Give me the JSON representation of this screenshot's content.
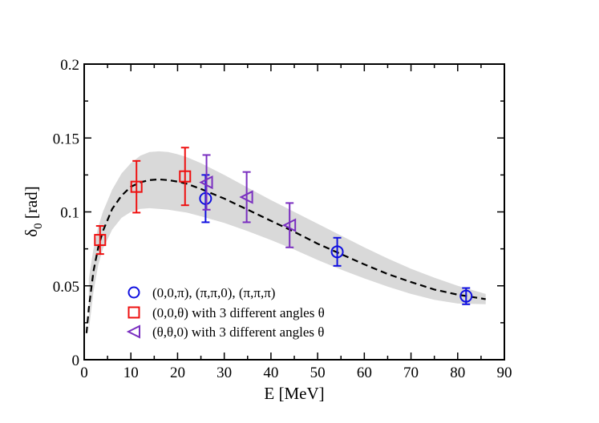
{
  "chart_data": {
    "type": "scatter",
    "title": "",
    "xlabel": "E [MeV]",
    "ylabel_main": "δ",
    "ylabel_sub": "0",
    "ylabel_unit": " [rad]",
    "xlim": [
      0,
      90
    ],
    "ylim": [
      0,
      0.2
    ],
    "x_ticks": [
      0,
      10,
      20,
      30,
      40,
      50,
      60,
      70,
      80,
      90
    ],
    "x_tick_labels": [
      "0",
      "10",
      "20",
      "30",
      "40",
      "50",
      "60",
      "70",
      "80",
      "90"
    ],
    "y_ticks": [
      0,
      0.05,
      0.1,
      0.15,
      0.2
    ],
    "y_tick_labels": [
      "0",
      "0.05",
      "0.1",
      "0.15",
      "0.2"
    ],
    "grid": false,
    "legend_position": "bottom-center",
    "colors": {
      "blue": "#1010e0",
      "red": "#ee1010",
      "purple": "#7a2fc0",
      "band": "#d9d9d9",
      "fit": "#000000"
    },
    "fit_curve": {
      "x": [
        0.5,
        1,
        2,
        3,
        4,
        6,
        8,
        10,
        12,
        14,
        16,
        18,
        20,
        22,
        25,
        30,
        35,
        40,
        45,
        50,
        55,
        60,
        65,
        70,
        75,
        80,
        86
      ],
      "y": [
        0.018,
        0.035,
        0.06,
        0.076,
        0.087,
        0.102,
        0.111,
        0.117,
        0.12,
        0.1215,
        0.122,
        0.1215,
        0.1205,
        0.119,
        0.1155,
        0.109,
        0.1015,
        0.094,
        0.0865,
        0.0785,
        0.0715,
        0.0645,
        0.058,
        0.0525,
        0.0475,
        0.044,
        0.041
      ]
    },
    "band": {
      "x": [
        1,
        2,
        3,
        4,
        6,
        8,
        10,
        12,
        14,
        16,
        18,
        20,
        22,
        25,
        30,
        35,
        40,
        45,
        50,
        55,
        60,
        65,
        70,
        75,
        80,
        86
      ],
      "upper": [
        0.055,
        0.075,
        0.09,
        0.1,
        0.115,
        0.126,
        0.133,
        0.138,
        0.1405,
        0.141,
        0.1405,
        0.139,
        0.137,
        0.133,
        0.125,
        0.1165,
        0.108,
        0.1,
        0.092,
        0.084,
        0.076,
        0.0685,
        0.0615,
        0.0555,
        0.05,
        0.0445
      ],
      "lower": [
        0.02,
        0.046,
        0.064,
        0.075,
        0.088,
        0.096,
        0.1,
        0.102,
        0.1025,
        0.102,
        0.1015,
        0.1005,
        0.0995,
        0.097,
        0.0925,
        0.087,
        0.081,
        0.0745,
        0.0675,
        0.061,
        0.055,
        0.0495,
        0.0445,
        0.0405,
        0.038,
        0.0375
      ]
    },
    "series": [
      {
        "name": "(0,0,π), (π,π,0), (π,π,π)",
        "marker": "circle",
        "color": "#1010e0",
        "points": [
          {
            "x": 26.0,
            "y": 0.109,
            "err": 0.016
          },
          {
            "x": 54.2,
            "y": 0.073,
            "err": 0.0095
          },
          {
            "x": 81.8,
            "y": 0.043,
            "err": 0.0055
          }
        ]
      },
      {
        "name": "(0,0,θ) with 3 different angles θ",
        "marker": "square",
        "color": "#ee1010",
        "points": [
          {
            "x": 3.4,
            "y": 0.081,
            "err": 0.0095
          },
          {
            "x": 11.2,
            "y": 0.117,
            "err": 0.0175
          },
          {
            "x": 21.6,
            "y": 0.124,
            "err": 0.0195
          }
        ]
      },
      {
        "name": "(θ,θ,0) with 3 different angles θ",
        "marker": "triangle-left",
        "color": "#7a2fc0",
        "points": [
          {
            "x": 26.2,
            "y": 0.12,
            "err": 0.0185
          },
          {
            "x": 34.8,
            "y": 0.11,
            "err": 0.017
          },
          {
            "x": 44.0,
            "y": 0.091,
            "err": 0.015
          }
        ]
      }
    ]
  }
}
